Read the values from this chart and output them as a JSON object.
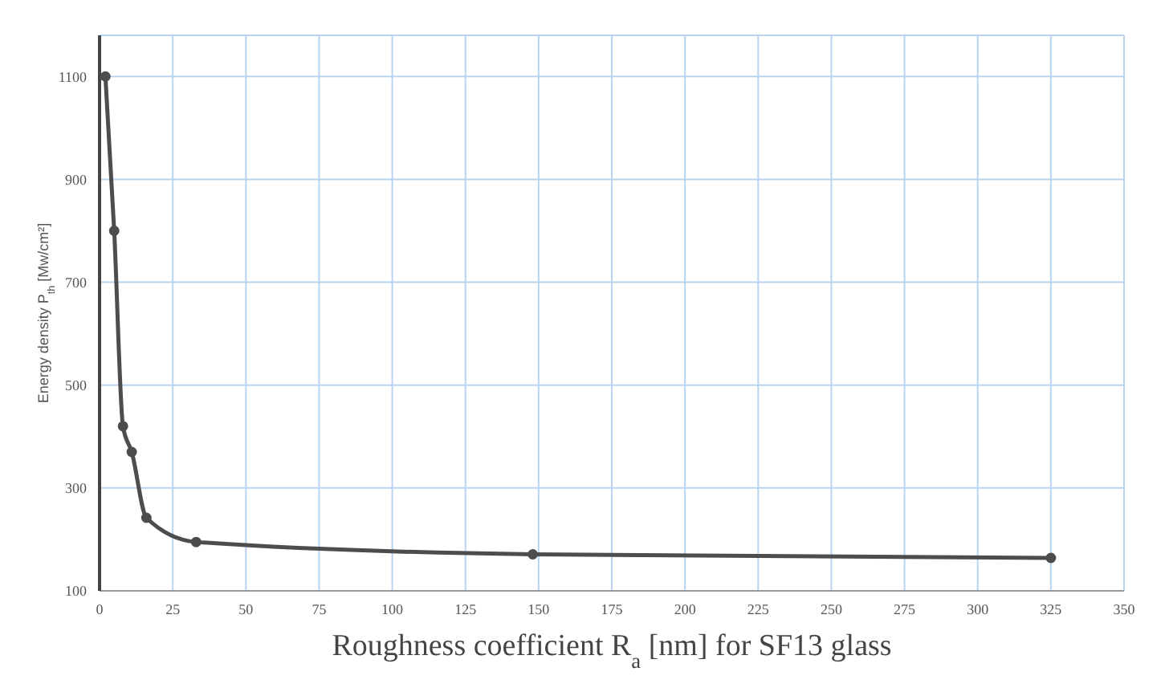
{
  "chart_data": {
    "type": "line",
    "xlabel": "Roughness coefficient R$_{a}$ [nm] for SF13 glass",
    "ylabel": "Energy density P$_{th}$ [Mw/cm²]",
    "x": [
      2,
      5,
      8,
      11,
      16,
      33,
      148,
      325
    ],
    "series": [
      {
        "color": "#4d4d4d",
        "values": [
          1100,
          800,
          420,
          370,
          242,
          195,
          171,
          164
        ]
      }
    ],
    "xlim": [
      0,
      350
    ],
    "xticks": [
      0,
      25,
      50,
      75,
      100,
      125,
      150,
      175,
      200,
      225,
      250,
      275,
      300,
      325,
      350
    ],
    "ylim": [
      100,
      1180
    ],
    "yticks": [
      100,
      300,
      500,
      700,
      900,
      1100
    ],
    "grid": true,
    "marker": "circle",
    "line_style": "solid"
  }
}
